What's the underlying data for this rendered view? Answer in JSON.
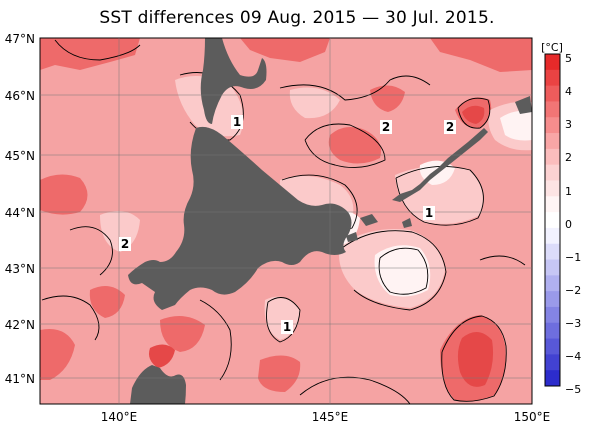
{
  "title": "SST differences 09 Aug. 2015 — 30 Jul. 2015.",
  "axes": {
    "lat_labels": [
      "47°N",
      "46°N",
      "45°N",
      "44°N",
      "43°N",
      "42°N",
      "41°N"
    ],
    "lon_labels": [
      "140°E",
      "145°E",
      "150°E"
    ]
  },
  "colorbar": {
    "unit": "[°C]",
    "ticks": [
      "5",
      "4",
      "3",
      "2",
      "1",
      "0",
      "−1",
      "−2",
      "−3",
      "−4",
      "−5"
    ],
    "colors": [
      "#e62a2a",
      "#ea4343",
      "#ee5c5c",
      "#f27575",
      "#f68d8d",
      "#f9a6a6",
      "#fbbdbd",
      "#fcd2d2",
      "#fde4e4",
      "#fff5f5",
      "#ffffff",
      "#f2f2ff",
      "#dcdcfa",
      "#c6c6f5",
      "#b0b0f0",
      "#9a9aea",
      "#8484e4",
      "#6e6ede",
      "#5858d8",
      "#4242d2",
      "#2c2ccc"
    ]
  },
  "contour_labels": [
    "1",
    "2",
    "2",
    "1",
    "2",
    "1"
  ],
  "colors": {
    "land": "#5a5a5a",
    "ocean_base": "#f6a0a0",
    "warm_strong": "#ee5c5c",
    "warm_light": "#fcd2d2",
    "near_zero": "#fff2f2"
  }
}
